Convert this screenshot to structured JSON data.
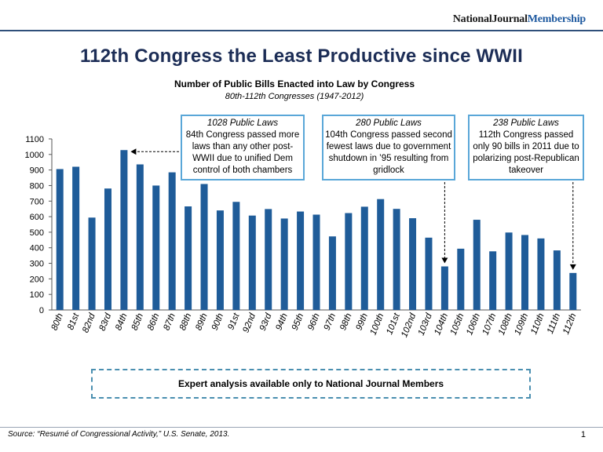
{
  "brand": {
    "part1": "NationalJournal",
    "part2": "Membership"
  },
  "header": {
    "title": "112th Congress the Least Productive since WWII",
    "subtitle": "Number of Public Bills Enacted into Law by Congress",
    "subsubtitle": "80th-112th Congresses (1947-2012)"
  },
  "callouts": [
    {
      "heading": "1028 Public Laws",
      "body": "84th Congress passed more laws than any other post-WWII due to unified Dem control of both chambers"
    },
    {
      "heading": "280 Public Laws",
      "body": "104th Congress passed second fewest laws due to government shutdown in ’95 resulting from gridlock"
    },
    {
      "heading": "238 Public Laws",
      "body": "112th Congress passed only 90 bills in 2011 due to polarizing post-Republican takeover"
    }
  ],
  "banner": {
    "text": "Expert analysis available only to National Journal Members"
  },
  "footer": {
    "source": "Source: “Resumé of Congressional Activity,” U.S. Senate, 2013.",
    "page_number": "1"
  },
  "colors": {
    "bar": "#1f5c99",
    "title": "#1c2d56",
    "callout_border": "#5aa7d8"
  },
  "chart_data": {
    "type": "bar",
    "title": "Number of Public Bills Enacted into Law by Congress",
    "xlabel": "",
    "ylabel": "",
    "ylim": [
      0,
      1100
    ],
    "yticks": [
      0,
      100,
      200,
      300,
      400,
      500,
      600,
      700,
      800,
      900,
      1000,
      1100
    ],
    "categories": [
      "80th",
      "81st",
      "82nd",
      "83rd",
      "84th",
      "85th",
      "86th",
      "87th",
      "88th",
      "89th",
      "90th",
      "91st",
      "92nd",
      "93rd",
      "94th",
      "95th",
      "96th",
      "97th",
      "98th",
      "99th",
      "100th",
      "101st",
      "102nd",
      "103rd",
      "104th",
      "105th",
      "106th",
      "107th",
      "108th",
      "109th",
      "110th",
      "111th",
      "112th"
    ],
    "values": [
      906,
      921,
      594,
      781,
      1028,
      936,
      800,
      885,
      666,
      810,
      640,
      695,
      607,
      649,
      588,
      633,
      613,
      473,
      623,
      664,
      713,
      650,
      590,
      465,
      280,
      394,
      580,
      377,
      498,
      482,
      460,
      383,
      238
    ]
  }
}
